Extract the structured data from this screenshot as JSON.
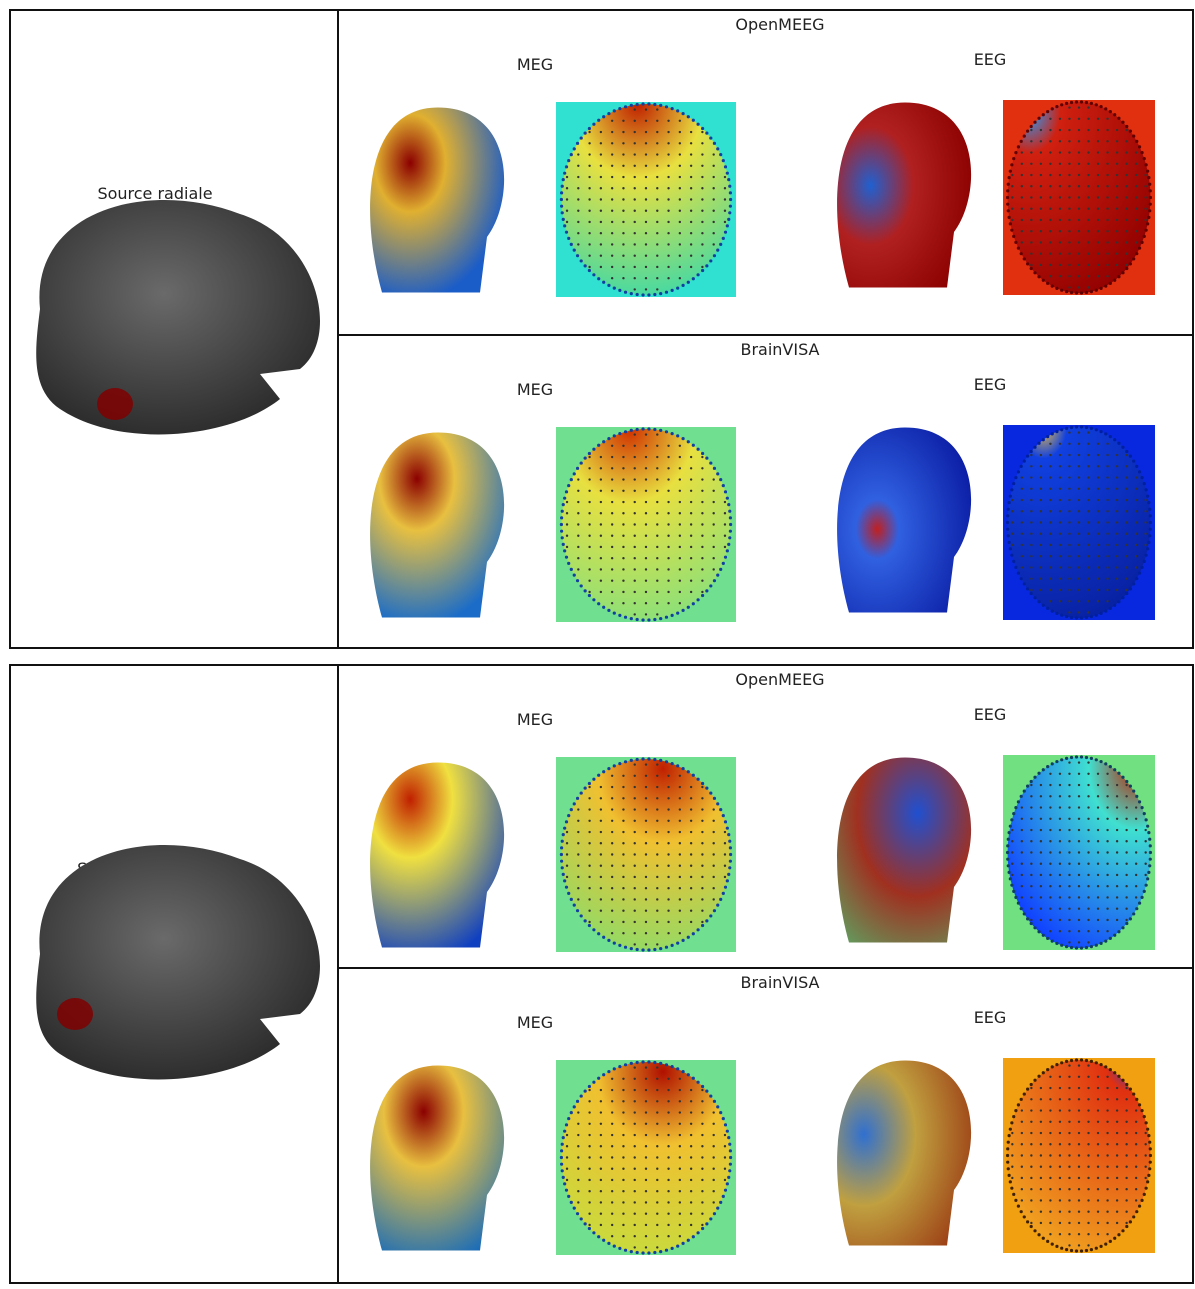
{
  "sections": [
    {
      "source": "Source radiale",
      "panels": [
        {
          "method": "OpenMEEG",
          "meg": "MEG",
          "eeg": "EEG"
        },
        {
          "method": "BrainVISA",
          "meg": "MEG",
          "eeg": "EEG"
        }
      ]
    },
    {
      "source": "Source tangentielle",
      "panels": [
        {
          "method": "OpenMEEG",
          "meg": "MEG",
          "eeg": "EEG"
        },
        {
          "method": "BrainVISA",
          "meg": "MEG",
          "eeg": "EEG"
        }
      ]
    }
  ]
}
